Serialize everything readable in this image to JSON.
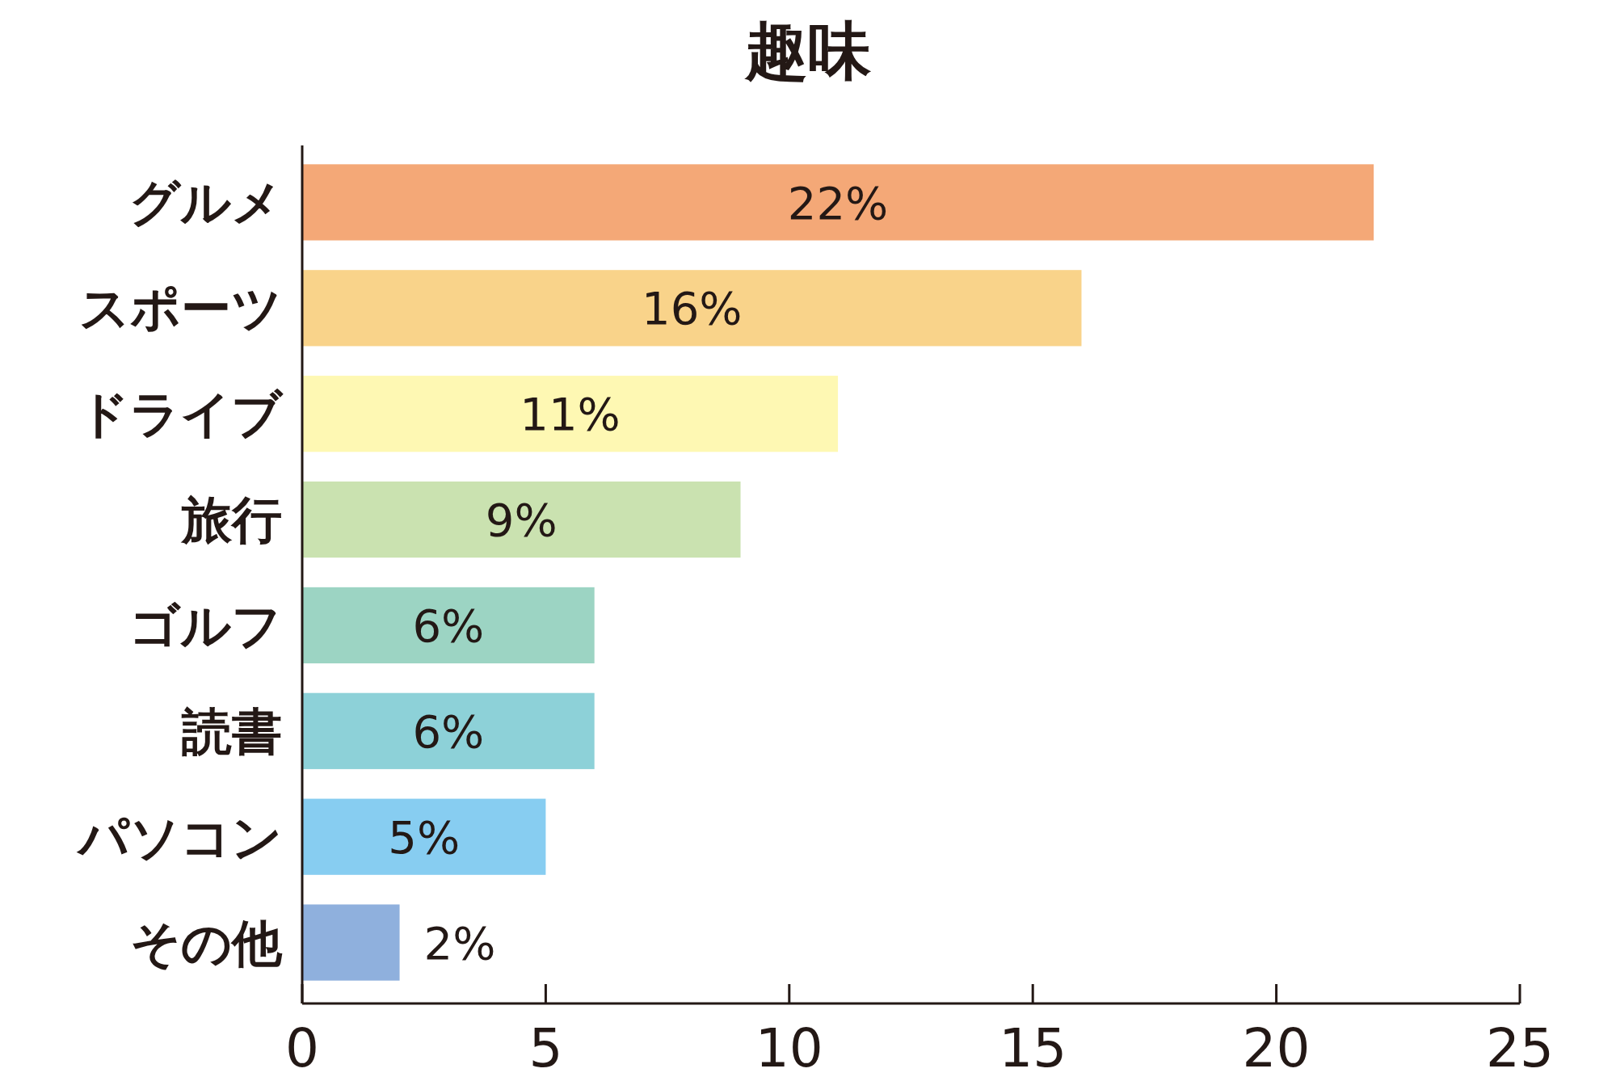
{
  "chart_data": {
    "type": "bar",
    "orientation": "horizontal",
    "title": "趣味",
    "categories": [
      "グルメ",
      "スポーツ",
      "ドライブ",
      "旅行",
      "ゴルフ",
      "読書",
      "パソコン",
      "その他"
    ],
    "values": [
      22,
      16,
      11,
      9,
      6,
      6,
      5,
      2
    ],
    "colors": [
      "#f4a877",
      "#f9d38a",
      "#fef8b3",
      "#cae2b0",
      "#9cd4c3",
      "#8dd1d8",
      "#87cdf1",
      "#8fb0dd"
    ],
    "value_labels": [
      "22%",
      "16%",
      "11%",
      "9%",
      "6%",
      "6%",
      "5%",
      "2%"
    ],
    "xlim": [
      0,
      25
    ],
    "xticks": [
      0,
      5,
      10,
      15,
      20,
      25
    ],
    "grid": false
  }
}
